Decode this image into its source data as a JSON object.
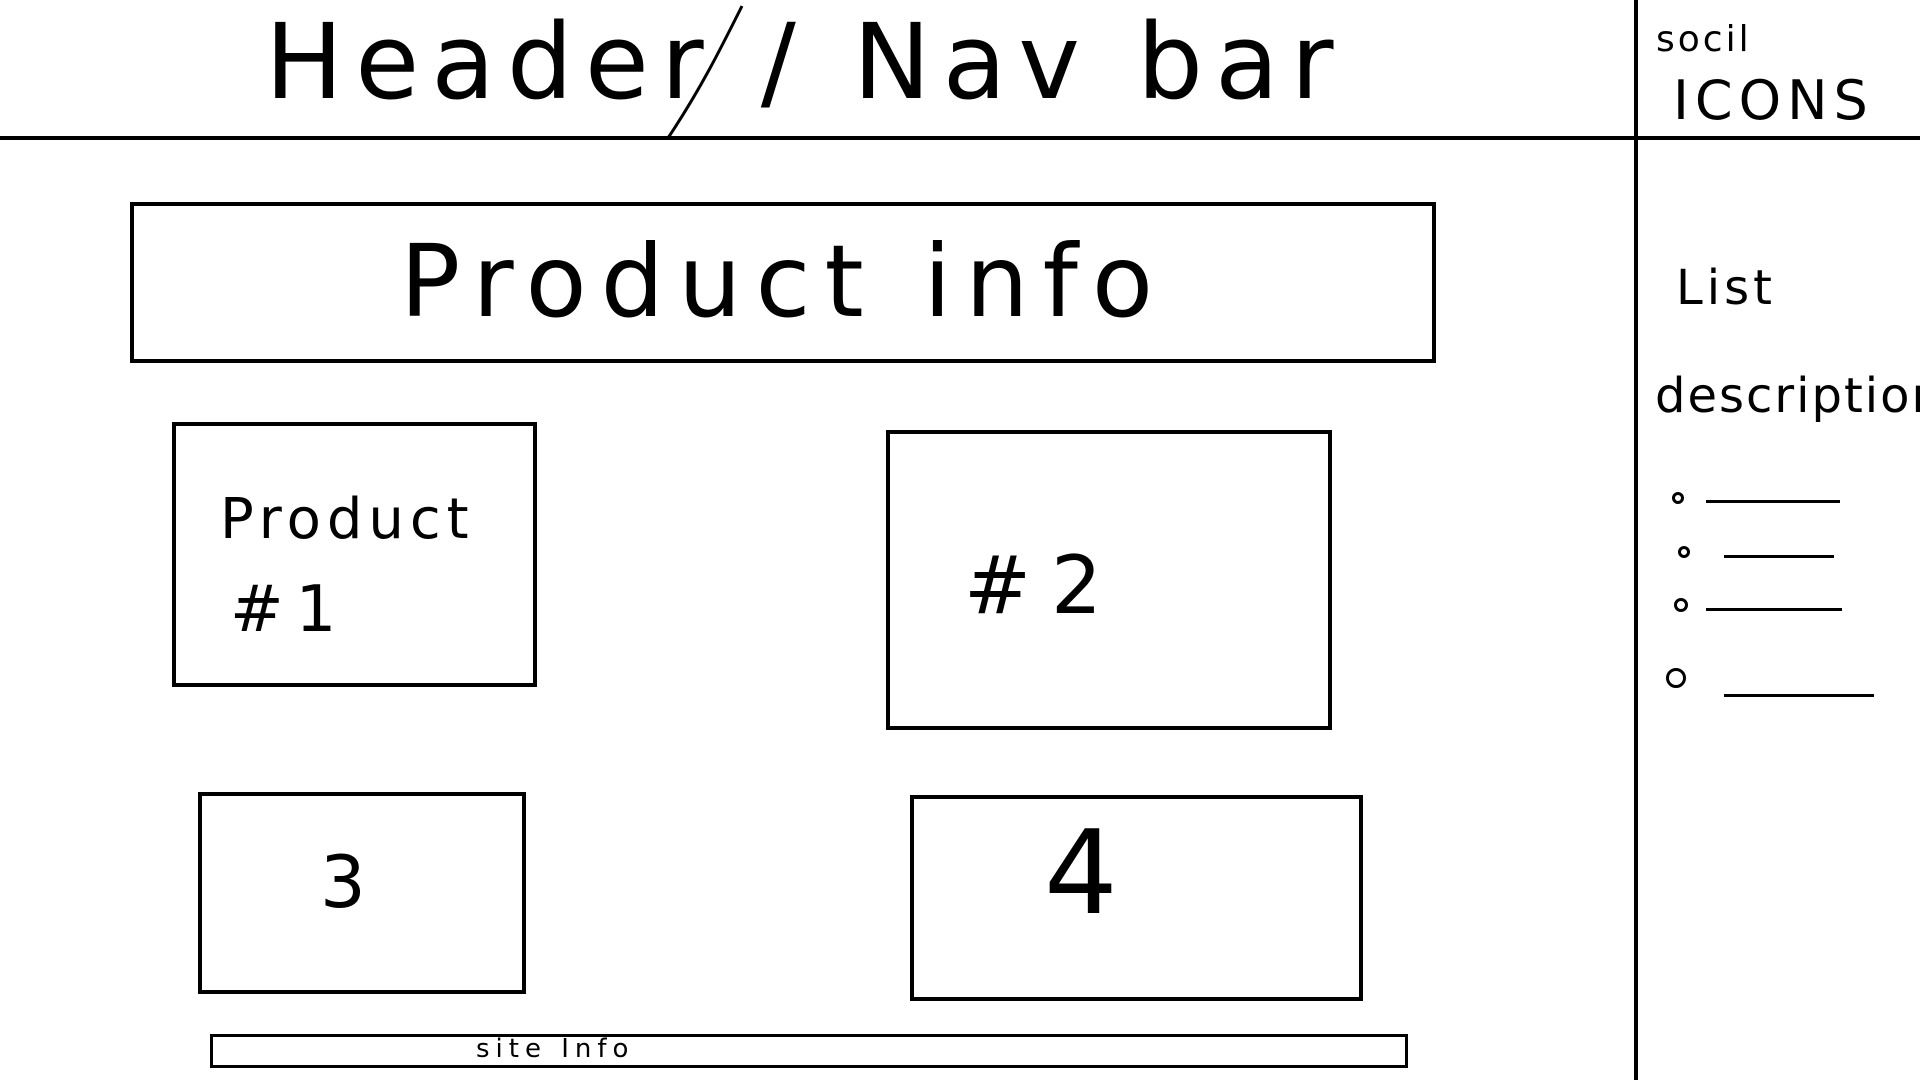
{
  "header": {
    "title": "Header / Nav bar",
    "social_line_1": "socil",
    "social_line_2": "ICONS"
  },
  "main": {
    "product_info": "Product info",
    "products": [
      {
        "line_1": "Product",
        "line_2": "#1"
      },
      {
        "line_1": "#2"
      },
      {
        "line_1": "3"
      },
      {
        "line_1": "4"
      }
    ],
    "footer": "site Info"
  },
  "sidebar": {
    "list_label": "List",
    "descriptions_label": "descriptions",
    "bullet_count_shown": 4
  },
  "colors": {
    "ink": "#000000",
    "paper": "#ffffff"
  }
}
